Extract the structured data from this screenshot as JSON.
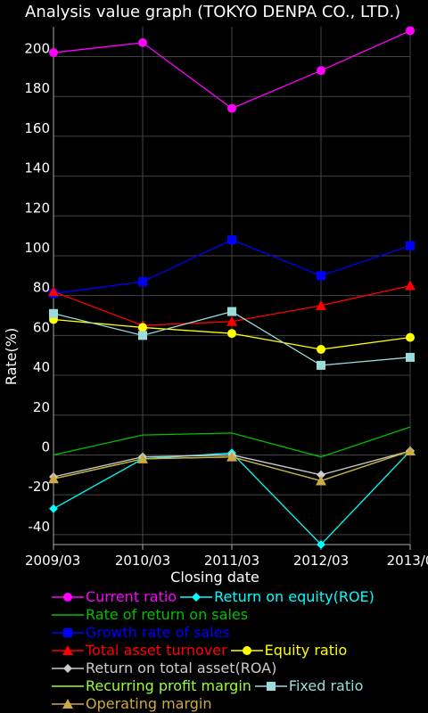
{
  "chart_data": {
    "type": "line",
    "title": "Analysis value graph (TOKYO DENPA CO., LTD.)",
    "xlabel": "Closing  date",
    "ylabel": "Rate(%)",
    "categories": [
      "2009/03",
      "2010/03",
      "2011/03",
      "2012/03",
      "2013/0"
    ],
    "ylim": [
      -45,
      215
    ],
    "yticks": [
      -40,
      -20,
      0,
      20,
      40,
      60,
      80,
      100,
      120,
      140,
      160,
      180,
      200
    ],
    "grid": true,
    "legend_position": "bottom",
    "series": [
      {
        "name": "Current ratio",
        "color": "#ff00ff",
        "marker": "circle",
        "values": [
          202,
          207,
          174,
          193,
          213
        ]
      },
      {
        "name": "Return on equity(ROE)",
        "color": "#00ffff",
        "marker": "diamond",
        "values": [
          -27,
          -2,
          1,
          -45,
          2
        ]
      },
      {
        "name": "Rate of return on sales",
        "color": "#00c000",
        "marker": "none",
        "values": [
          0,
          10,
          11,
          -1,
          14
        ]
      },
      {
        "name": "Growth rate of sales",
        "color": "#0000ff",
        "marker": "square",
        "values": [
          81,
          87,
          108,
          90,
          105
        ]
      },
      {
        "name": "Total asset turnover",
        "color": "#ff0000",
        "marker": "triangle",
        "values": [
          82,
          65,
          67,
          75,
          85
        ]
      },
      {
        "name": "Equity ratio",
        "color": "#ffff00",
        "marker": "circle",
        "values": [
          68,
          64,
          61,
          53,
          59
        ]
      },
      {
        "name": "Return on total asset(ROA)",
        "color": "#cccccc",
        "marker": "diamond",
        "values": [
          -11,
          -1,
          0,
          -10,
          2
        ]
      },
      {
        "name": "Recurring profit margin",
        "color": "#99ff33",
        "marker": "none",
        "values": [
          -12,
          -2,
          -1,
          -13,
          2
        ]
      },
      {
        "name": "Fixed ratio",
        "color": "#99dddd",
        "marker": "square",
        "values": [
          71,
          60,
          72,
          45,
          49
        ]
      },
      {
        "name": "Operating margin",
        "color": "#ccaa44",
        "marker": "triangle",
        "values": [
          -12,
          -2,
          -1,
          -13,
          2
        ]
      }
    ]
  },
  "legend_rows": [
    [
      0,
      1
    ],
    [
      2
    ],
    [
      3
    ],
    [
      4,
      5
    ],
    [
      6
    ],
    [
      7,
      8
    ],
    [
      9
    ]
  ]
}
